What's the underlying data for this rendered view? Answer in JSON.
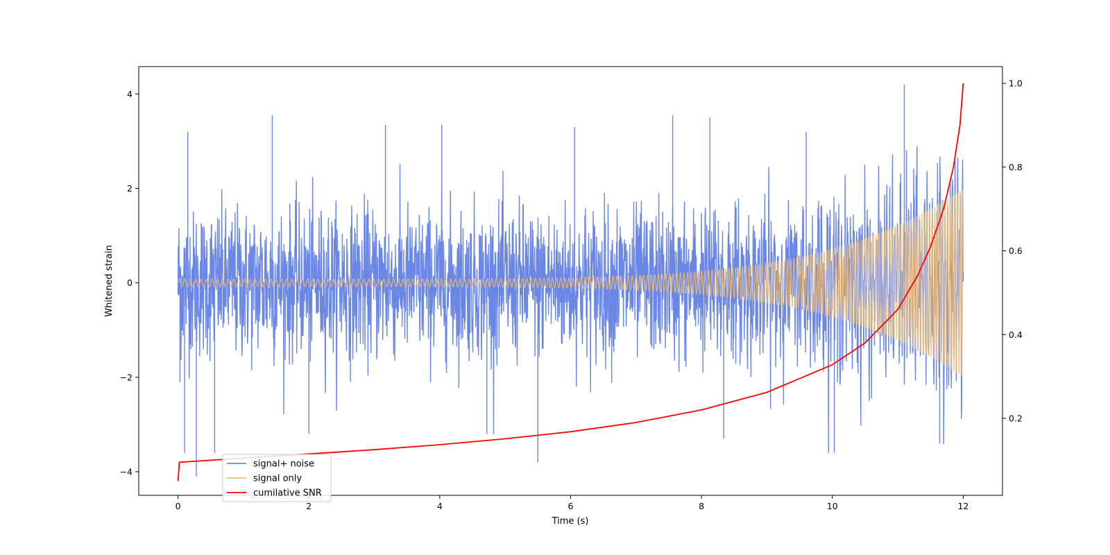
{
  "chart_data": {
    "type": "line",
    "title": "",
    "xlabel": "Time (s)",
    "ylabel": "Whitened strain",
    "y2label": "",
    "xlim": [
      -0.6,
      12.6
    ],
    "ylim": [
      -4.5,
      4.58
    ],
    "y2lim": [
      0.016,
      1.04
    ],
    "x_ticks": [
      0,
      2,
      4,
      6,
      8,
      10,
      12
    ],
    "y_ticks": [
      -4,
      -2,
      0,
      2,
      4
    ],
    "y2_ticks": [
      0.2,
      0.4,
      0.6,
      0.8,
      1.0
    ],
    "grid": false,
    "legend_position": "lower-left",
    "series": [
      {
        "name": "signal+ noise",
        "axis": "left",
        "color": "#6b87e6",
        "duration_s": 12,
        "noise_std": 0.78,
        "extremes": {
          "t": [
            0.03,
            0.1,
            0.15,
            0.28,
            0.56,
            1.44,
            2.0,
            3.17,
            4.03,
            4.72,
            5.5,
            6.06,
            7.56,
            8.13,
            8.34,
            9.6,
            10.03,
            11.1,
            11.64
          ],
          "v": [
            -2.1,
            -3.6,
            3.2,
            -4.1,
            -3.6,
            3.55,
            -3.2,
            3.35,
            3.35,
            -3.2,
            -3.8,
            3.3,
            3.55,
            3.5,
            -3.3,
            3.2,
            -3.6,
            4.2,
            -3.4
          ]
        }
      },
      {
        "name": "signal only",
        "axis": "left",
        "color": "#f5bd6a",
        "amplitude_start": 0.08,
        "amplitude_end": 2.0,
        "duration_s": 12
      },
      {
        "name": "cumilative SNR",
        "axis": "right",
        "color": "#ff0000",
        "x": [
          0,
          0.02,
          1,
          2,
          3,
          4,
          5,
          6,
          7,
          8,
          9,
          10,
          10.5,
          11,
          11.3,
          11.5,
          11.7,
          11.85,
          11.95,
          12.0
        ],
        "y": [
          0.05,
          0.095,
          0.105,
          0.115,
          0.125,
          0.137,
          0.151,
          0.168,
          0.19,
          0.22,
          0.262,
          0.328,
          0.38,
          0.46,
          0.54,
          0.61,
          0.7,
          0.8,
          0.9,
          1.0
        ]
      }
    ]
  }
}
